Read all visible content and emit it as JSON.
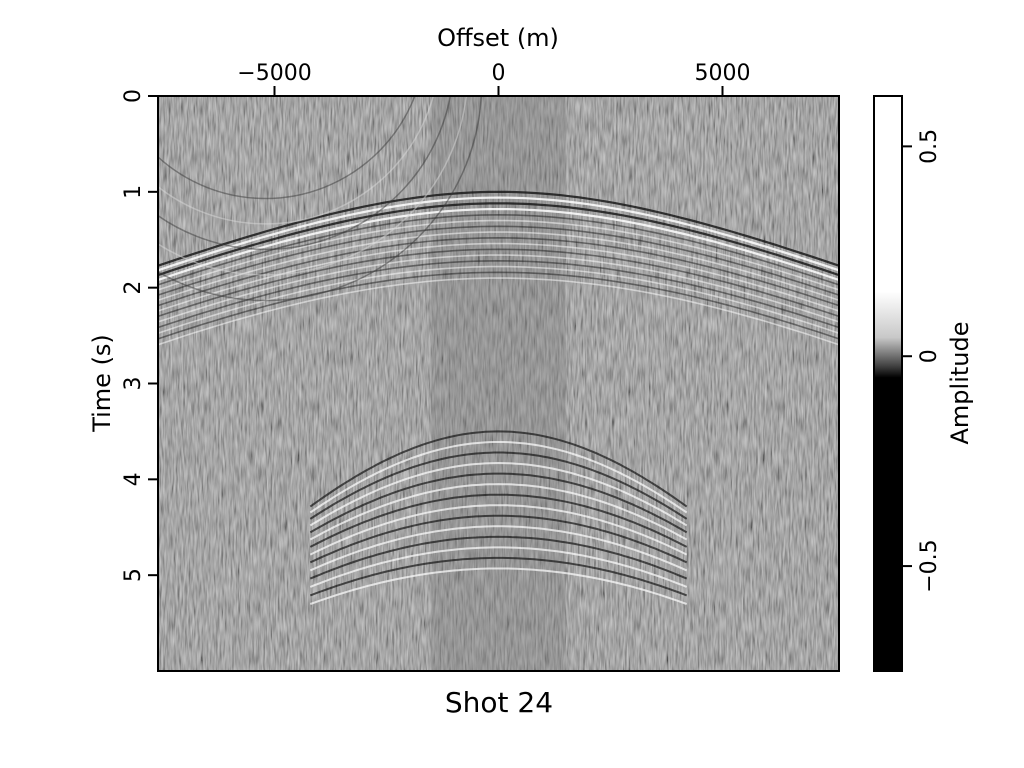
{
  "chart_data": {
    "type": "heatmap",
    "title": "Shot 24",
    "xlabel": "Offset (m)",
    "ylabel": "Time (s)",
    "xlim": [
      -7600,
      7600
    ],
    "ylim": [
      0,
      6
    ],
    "y_inverted": true,
    "x_axis_position": "top",
    "x_ticks": [
      -5000,
      0,
      5000
    ],
    "x_tick_labels": [
      "−5000",
      "0",
      "5000"
    ],
    "y_ticks": [
      0,
      1,
      2,
      3,
      4,
      5
    ],
    "y_tick_labels": [
      "0",
      "1",
      "2",
      "3",
      "4",
      "5"
    ],
    "grid": false,
    "colormap": "gray",
    "colorbar": {
      "label": "Amplitude",
      "range": [
        -0.75,
        0.62
      ],
      "ticks": [
        -0.5,
        0,
        0.5
      ],
      "tick_labels": [
        "−0.5",
        "0",
        "0.5"
      ],
      "position": "right"
    },
    "events": {
      "direct_arrival_apex_time": 1.0,
      "diffraction_apex_time": 3.5
    },
    "colors": {
      "background_gray": "#8a8a8a",
      "frame": "#000000"
    }
  }
}
